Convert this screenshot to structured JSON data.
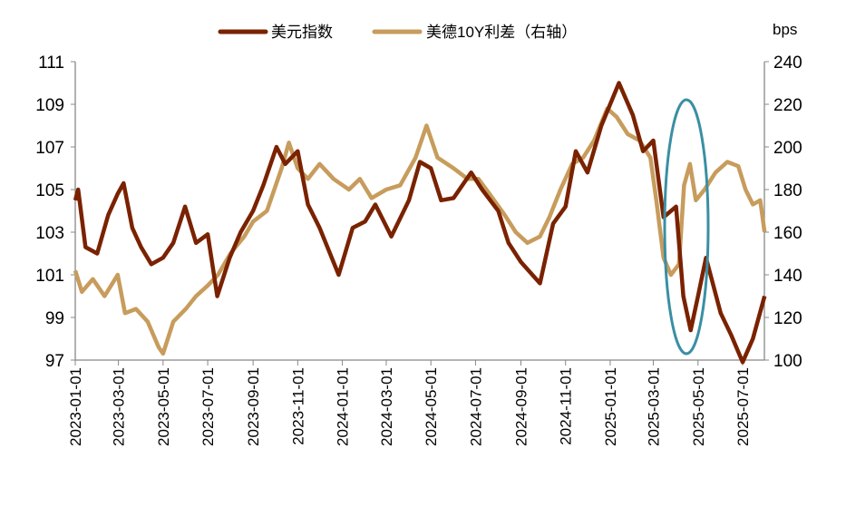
{
  "chart_data": {
    "type": "line",
    "title": "",
    "legend": [
      {
        "name": "美元指数",
        "color": "#7a2200",
        "axis": "left"
      },
      {
        "name": "美德10Y利差（右轴）",
        "color": "#c79c5c",
        "axis": "right"
      }
    ],
    "legend_position": "top",
    "right_axis_unit": "bps",
    "left_axis": {
      "ylim": [
        97,
        111
      ],
      "ticks": [
        97,
        99,
        101,
        103,
        105,
        107,
        109,
        111
      ]
    },
    "right_axis": {
      "ylim": [
        100,
        240
      ],
      "ticks": [
        100,
        120,
        140,
        160,
        180,
        200,
        220,
        240
      ]
    },
    "x_range": [
      "2023-01-01",
      "2025-08-01"
    ],
    "x_ticks": [
      "2023-01-01",
      "2023-03-01",
      "2023-05-01",
      "2023-07-01",
      "2023-09-01",
      "2023-11-01",
      "2024-01-01",
      "2024-03-01",
      "2024-05-01",
      "2024-07-01",
      "2024-09-01",
      "2024-11-01",
      "2025-01-01",
      "2025-03-01",
      "2025-05-01",
      "2025-07-01"
    ],
    "grid": false,
    "annotation": {
      "type": "ellipse",
      "color": "#3a8fa3",
      "around_date": "2025-04-15"
    },
    "series": [
      {
        "name": "美元指数",
        "points": [
          [
            "2023-01-01",
            104.5
          ],
          [
            "2023-01-05",
            105.0
          ],
          [
            "2023-01-15",
            102.3
          ],
          [
            "2023-01-31",
            102.0
          ],
          [
            "2023-02-15",
            103.8
          ],
          [
            "2023-02-28",
            104.8
          ],
          [
            "2023-03-08",
            105.3
          ],
          [
            "2023-03-20",
            103.2
          ],
          [
            "2023-04-01",
            102.3
          ],
          [
            "2023-04-15",
            101.5
          ],
          [
            "2023-05-01",
            101.8
          ],
          [
            "2023-05-15",
            102.5
          ],
          [
            "2023-05-31",
            104.2
          ],
          [
            "2023-06-15",
            102.5
          ],
          [
            "2023-07-01",
            102.9
          ],
          [
            "2023-07-14",
            100.0
          ],
          [
            "2023-07-31",
            101.8
          ],
          [
            "2023-08-15",
            103.0
          ],
          [
            "2023-09-01",
            104.0
          ],
          [
            "2023-09-15",
            105.2
          ],
          [
            "2023-10-03",
            107.0
          ],
          [
            "2023-10-15",
            106.2
          ],
          [
            "2023-11-01",
            106.8
          ],
          [
            "2023-11-15",
            104.3
          ],
          [
            "2023-12-01",
            103.2
          ],
          [
            "2023-12-27",
            101.0
          ],
          [
            "2024-01-15",
            103.2
          ],
          [
            "2024-02-01",
            103.5
          ],
          [
            "2024-02-15",
            104.3
          ],
          [
            "2024-03-08",
            102.8
          ],
          [
            "2024-04-01",
            104.5
          ],
          [
            "2024-04-16",
            106.3
          ],
          [
            "2024-05-01",
            106.0
          ],
          [
            "2024-05-15",
            104.5
          ],
          [
            "2024-06-01",
            104.6
          ],
          [
            "2024-06-25",
            105.8
          ],
          [
            "2024-07-10",
            105.0
          ],
          [
            "2024-08-01",
            104.0
          ],
          [
            "2024-08-15",
            102.5
          ],
          [
            "2024-09-01",
            101.6
          ],
          [
            "2024-09-27",
            100.6
          ],
          [
            "2024-10-15",
            103.4
          ],
          [
            "2024-11-01",
            104.2
          ],
          [
            "2024-11-15",
            106.8
          ],
          [
            "2024-12-01",
            105.8
          ],
          [
            "2024-12-20",
            108.0
          ],
          [
            "2025-01-13",
            110.0
          ],
          [
            "2025-02-01",
            108.5
          ],
          [
            "2025-02-15",
            106.8
          ],
          [
            "2025-03-01",
            107.3
          ],
          [
            "2025-03-15",
            103.7
          ],
          [
            "2025-04-01",
            104.2
          ],
          [
            "2025-04-11",
            100.0
          ],
          [
            "2025-04-21",
            98.4
          ],
          [
            "2025-05-01",
            100.0
          ],
          [
            "2025-05-12",
            101.8
          ],
          [
            "2025-06-01",
            99.2
          ],
          [
            "2025-06-15",
            98.2
          ],
          [
            "2025-07-01",
            96.9
          ],
          [
            "2025-07-15",
            98.0
          ],
          [
            "2025-07-31",
            100.0
          ]
        ]
      },
      {
        "name": "美德10Y利差（右轴）",
        "points": [
          [
            "2023-01-01",
            142
          ],
          [
            "2023-01-10",
            132
          ],
          [
            "2023-01-25",
            138
          ],
          [
            "2023-02-10",
            130
          ],
          [
            "2023-02-28",
            140
          ],
          [
            "2023-03-10",
            122
          ],
          [
            "2023-03-25",
            124
          ],
          [
            "2023-04-10",
            118
          ],
          [
            "2023-04-25",
            106
          ],
          [
            "2023-05-01",
            103
          ],
          [
            "2023-05-15",
            118
          ],
          [
            "2023-06-01",
            124
          ],
          [
            "2023-06-15",
            130
          ],
          [
            "2023-07-01",
            135
          ],
          [
            "2023-07-15",
            140
          ],
          [
            "2023-08-01",
            150
          ],
          [
            "2023-08-20",
            158
          ],
          [
            "2023-09-01",
            165
          ],
          [
            "2023-09-20",
            170
          ],
          [
            "2023-10-10",
            190
          ],
          [
            "2023-10-20",
            202
          ],
          [
            "2023-11-01",
            190
          ],
          [
            "2023-11-15",
            185
          ],
          [
            "2023-12-01",
            192
          ],
          [
            "2023-12-20",
            185
          ],
          [
            "2024-01-10",
            180
          ],
          [
            "2024-01-25",
            185
          ],
          [
            "2024-02-10",
            176
          ],
          [
            "2024-03-01",
            180
          ],
          [
            "2024-03-20",
            182
          ],
          [
            "2024-04-10",
            195
          ],
          [
            "2024-04-25",
            210
          ],
          [
            "2024-05-10",
            195
          ],
          [
            "2024-06-01",
            190
          ],
          [
            "2024-06-20",
            185
          ],
          [
            "2024-07-05",
            185
          ],
          [
            "2024-07-20",
            178
          ],
          [
            "2024-08-10",
            168
          ],
          [
            "2024-08-25",
            160
          ],
          [
            "2024-09-10",
            155
          ],
          [
            "2024-09-27",
            158
          ],
          [
            "2024-10-10",
            167
          ],
          [
            "2024-10-25",
            180
          ],
          [
            "2024-11-10",
            192
          ],
          [
            "2024-11-25",
            195
          ],
          [
            "2024-12-10",
            203
          ],
          [
            "2024-12-28",
            218
          ],
          [
            "2025-01-10",
            214
          ],
          [
            "2025-01-25",
            206
          ],
          [
            "2025-02-10",
            203
          ],
          [
            "2025-02-25",
            195
          ],
          [
            "2025-03-05",
            175
          ],
          [
            "2025-03-15",
            148
          ],
          [
            "2025-03-25",
            140
          ],
          [
            "2025-04-05",
            145
          ],
          [
            "2025-04-12",
            182
          ],
          [
            "2025-04-20",
            192
          ],
          [
            "2025-04-28",
            175
          ],
          [
            "2025-05-10",
            180
          ],
          [
            "2025-05-25",
            188
          ],
          [
            "2025-06-10",
            193
          ],
          [
            "2025-06-25",
            191
          ],
          [
            "2025-07-05",
            180
          ],
          [
            "2025-07-15",
            173
          ],
          [
            "2025-07-25",
            175
          ],
          [
            "2025-07-31",
            160
          ]
        ]
      }
    ]
  }
}
